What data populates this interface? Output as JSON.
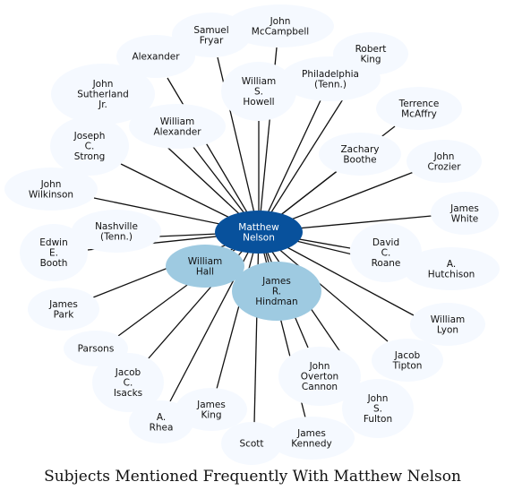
{
  "caption": "Subjects Mentioned Frequently With Matthew Nelson",
  "colors": {
    "edge": "#111111",
    "center_fill": "#08519c",
    "highlight_fill": "#9ecae1",
    "node_fill": "#f5f9ff",
    "center_text": "#ffffff",
    "text": "#111111"
  },
  "center": {
    "id": "matthew-nelson",
    "lines": [
      "Matthew",
      "Nelson"
    ]
  },
  "nodes": [
    {
      "id": "john-mccampbell",
      "lines": [
        "John",
        "McCampbell"
      ],
      "tier": "normal"
    },
    {
      "id": "samuel-fryar",
      "lines": [
        "Samuel",
        "Fryar"
      ],
      "tier": "normal"
    },
    {
      "id": "robert-king",
      "lines": [
        "Robert",
        "King"
      ],
      "tier": "normal"
    },
    {
      "id": "alexander",
      "lines": [
        "Alexander"
      ],
      "tier": "normal"
    },
    {
      "id": "philadelphia-tenn",
      "lines": [
        "Philadelphia",
        "(Tenn.)"
      ],
      "tier": "normal"
    },
    {
      "id": "john-sutherland-jr",
      "lines": [
        "John",
        "Sutherland",
        "Jr."
      ],
      "tier": "normal"
    },
    {
      "id": "william-s-howell",
      "lines": [
        "William",
        "S.",
        "Howell"
      ],
      "tier": "normal"
    },
    {
      "id": "terrence-mcaffry",
      "lines": [
        "Terrence",
        "McAffry"
      ],
      "tier": "normal"
    },
    {
      "id": "william-alexander",
      "lines": [
        "William",
        "Alexander"
      ],
      "tier": "normal"
    },
    {
      "id": "joseph-c-strong",
      "lines": [
        "Joseph",
        "C.",
        "Strong"
      ],
      "tier": "normal"
    },
    {
      "id": "zachary-boothe",
      "lines": [
        "Zachary",
        "Boothe"
      ],
      "tier": "normal"
    },
    {
      "id": "john-crozier",
      "lines": [
        "John",
        "Crozier"
      ],
      "tier": "normal"
    },
    {
      "id": "john-wilkinson",
      "lines": [
        "John",
        "Wilkinson"
      ],
      "tier": "normal"
    },
    {
      "id": "james-white",
      "lines": [
        "James",
        "White"
      ],
      "tier": "normal"
    },
    {
      "id": "nashville-tenn",
      "lines": [
        "Nashville",
        "(Tenn.)"
      ],
      "tier": "normal"
    },
    {
      "id": "edwin-e-booth",
      "lines": [
        "Edwin",
        "E.",
        "Booth"
      ],
      "tier": "normal"
    },
    {
      "id": "david-c-roane",
      "lines": [
        "David",
        "C.",
        "Roane"
      ],
      "tier": "normal"
    },
    {
      "id": "a-hutchison",
      "lines": [
        "A.",
        "Hutchison"
      ],
      "tier": "normal"
    },
    {
      "id": "william-hall",
      "lines": [
        "William",
        "Hall"
      ],
      "tier": "highlight"
    },
    {
      "id": "james-r-hindman",
      "lines": [
        "James",
        "R.",
        "Hindman"
      ],
      "tier": "highlight"
    },
    {
      "id": "james-park",
      "lines": [
        "James",
        "Park"
      ],
      "tier": "normal"
    },
    {
      "id": "william-lyon",
      "lines": [
        "William",
        "Lyon"
      ],
      "tier": "normal"
    },
    {
      "id": "parsons",
      "lines": [
        "Parsons"
      ],
      "tier": "normal"
    },
    {
      "id": "jacob-tipton",
      "lines": [
        "Jacob",
        "Tipton"
      ],
      "tier": "normal"
    },
    {
      "id": "jacob-c-isacks",
      "lines": [
        "Jacob",
        "C.",
        "Isacks"
      ],
      "tier": "normal"
    },
    {
      "id": "john-overton-cannon",
      "lines": [
        "John",
        "Overton",
        "Cannon"
      ],
      "tier": "normal"
    },
    {
      "id": "john-s-fulton",
      "lines": [
        "John",
        "S.",
        "Fulton"
      ],
      "tier": "normal"
    },
    {
      "id": "james-king",
      "lines": [
        "James",
        "King"
      ],
      "tier": "normal"
    },
    {
      "id": "a-rhea",
      "lines": [
        "A.",
        "Rhea"
      ],
      "tier": "normal"
    },
    {
      "id": "james-kennedy",
      "lines": [
        "James",
        "Kennedy"
      ],
      "tier": "normal"
    },
    {
      "id": "scott",
      "lines": [
        "Scott"
      ],
      "tier": "normal"
    }
  ]
}
